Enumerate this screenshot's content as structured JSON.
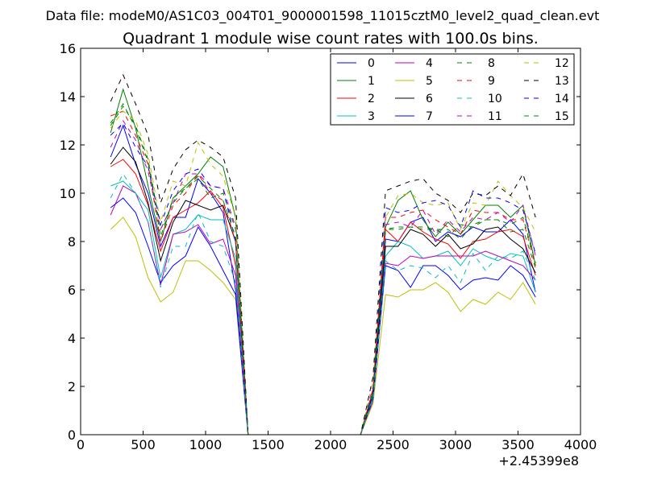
{
  "chart_data": {
    "type": "line",
    "suptitle": "Data file: modeM0/AS1C03_004T01_9000001598_11015cztM0_level2_quad_clean.evt",
    "title": "Quadrant 1 module wise count rates with 100.0s bins.",
    "xlabel": "",
    "ylabel": "",
    "x_offset_label": "+2.45399e8",
    "xlim": [
      0,
      4000
    ],
    "ylim": [
      0,
      16
    ],
    "xticks": [
      0,
      500,
      1000,
      1500,
      2000,
      2500,
      3000,
      3500,
      4000
    ],
    "yticks": [
      0,
      2,
      4,
      6,
      8,
      10,
      12,
      14,
      16
    ],
    "grid": false,
    "legend_position": "top-right",
    "legend_columns": 4,
    "x": [
      240,
      340,
      440,
      540,
      640,
      740,
      840,
      940,
      1040,
      1140,
      1240,
      1340,
      1440,
      1540,
      1640,
      1740,
      1840,
      1940,
      2040,
      2140,
      2240,
      2340,
      2440,
      2540,
      2640,
      2740,
      2840,
      2940,
      3040,
      3140,
      3240,
      3340,
      3440,
      3540,
      3640
    ],
    "series": [
      {
        "name": "0",
        "color": "#0000ff",
        "dashed": false,
        "values": [
          11.5,
          12.8,
          11.2,
          10.0,
          7.8,
          9.0,
          9.0,
          10.6,
          10.0,
          9.2,
          6.0,
          0,
          0,
          0,
          0,
          0,
          0,
          0,
          0,
          0,
          0,
          1.5,
          8.1,
          8.0,
          8.8,
          9.0,
          8.0,
          8.4,
          8.2,
          8.6,
          8.4,
          8.4,
          8.9,
          8.3,
          5.9
        ]
      },
      {
        "name": "1",
        "color": "#008000",
        "dashed": false,
        "values": [
          12.5,
          14.3,
          12.7,
          10.3,
          8.0,
          9.8,
          10.3,
          10.8,
          11.5,
          11.1,
          9.0,
          0,
          0,
          0,
          0,
          0,
          0,
          0,
          0,
          0,
          0,
          1.8,
          8.6,
          9.7,
          10.1,
          8.9,
          8.2,
          8.8,
          8.3,
          8.9,
          9.5,
          9.5,
          9.0,
          9.5,
          7.0
        ]
      },
      {
        "name": "2",
        "color": "#ff0000",
        "dashed": false,
        "values": [
          11.1,
          11.4,
          10.8,
          9.5,
          7.6,
          9.0,
          9.3,
          9.6,
          10.1,
          9.4,
          7.0,
          0,
          0,
          0,
          0,
          0,
          0,
          0,
          0,
          0,
          0,
          1.8,
          8.5,
          8.0,
          8.8,
          8.4,
          8.1,
          7.9,
          7.3,
          8.0,
          8.1,
          8.4,
          8.5,
          8.2,
          6.6
        ]
      },
      {
        "name": "3",
        "color": "#00bfbf",
        "dashed": false,
        "values": [
          10.3,
          10.5,
          10.0,
          9.3,
          6.5,
          8.3,
          8.5,
          9.1,
          8.9,
          8.9,
          7.3,
          0,
          0,
          0,
          0,
          0,
          0,
          0,
          0,
          0,
          0,
          1.6,
          7.4,
          8.0,
          7.8,
          7.3,
          7.4,
          7.6,
          7.0,
          7.7,
          7.4,
          7.2,
          7.5,
          7.4,
          5.9
        ]
      },
      {
        "name": "4",
        "color": "#bf00bf",
        "dashed": false,
        "values": [
          9.1,
          10.3,
          10.0,
          8.8,
          6.2,
          8.3,
          8.4,
          8.7,
          7.9,
          8.1,
          6.6,
          0,
          0,
          0,
          0,
          0,
          0,
          0,
          0,
          0,
          0,
          1.4,
          7.1,
          7.0,
          7.4,
          7.3,
          7.4,
          7.4,
          7.4,
          7.4,
          7.6,
          7.4,
          7.2,
          7.0,
          6.4
        ]
      },
      {
        "name": "5",
        "color": "#bfbf00",
        "dashed": false,
        "values": [
          8.5,
          9.0,
          8.2,
          6.5,
          5.5,
          5.9,
          7.2,
          7.2,
          6.8,
          6.3,
          5.6,
          0,
          0,
          0,
          0,
          0,
          0,
          0,
          0,
          0,
          0,
          1.3,
          5.8,
          5.7,
          6.0,
          6.0,
          6.3,
          5.9,
          5.1,
          5.6,
          5.4,
          5.9,
          5.6,
          6.3,
          5.4
        ]
      },
      {
        "name": "6",
        "color": "#000000",
        "dashed": false,
        "values": [
          11.2,
          11.9,
          11.3,
          9.6,
          7.2,
          8.8,
          9.7,
          9.5,
          9.3,
          9.5,
          8.0,
          0,
          0,
          0,
          0,
          0,
          0,
          0,
          0,
          0,
          0,
          1.7,
          7.8,
          7.8,
          8.5,
          8.3,
          7.8,
          8.3,
          7.7,
          7.9,
          8.5,
          8.6,
          8.1,
          7.7,
          6.7
        ]
      },
      {
        "name": "7",
        "color": "#0000ff",
        "dashed": false,
        "values": [
          9.4,
          9.8,
          9.2,
          7.8,
          6.3,
          7.0,
          7.4,
          8.6,
          7.8,
          6.8,
          5.8,
          0,
          0,
          0,
          0,
          0,
          0,
          0,
          0,
          0,
          0,
          1.5,
          7.0,
          6.8,
          6.1,
          7.0,
          7.0,
          6.6,
          6.0,
          6.4,
          6.5,
          6.4,
          7.0,
          6.6,
          5.7
        ]
      },
      {
        "name": "8",
        "color": "#008000",
        "dashed": true,
        "values": [
          12.8,
          13.6,
          12.8,
          11.4,
          8.5,
          9.6,
          10.2,
          10.6,
          9.8,
          10.0,
          8.5,
          0,
          0,
          0,
          0,
          0,
          0,
          0,
          0,
          0,
          0,
          1.7,
          8.5,
          8.5,
          8.6,
          8.6,
          8.5,
          8.2,
          8.7,
          8.6,
          8.9,
          8.9,
          8.4,
          8.5,
          6.9
        ]
      },
      {
        "name": "9",
        "color": "#ff0000",
        "dashed": true,
        "values": [
          13.2,
          13.4,
          12.4,
          11.2,
          8.0,
          9.5,
          10.0,
          10.8,
          10.0,
          9.7,
          8.0,
          0,
          0,
          0,
          0,
          0,
          0,
          0,
          0,
          0,
          0,
          1.9,
          9.0,
          9.0,
          9.2,
          9.3,
          8.9,
          8.6,
          8.3,
          9.3,
          9.2,
          9.2,
          8.9,
          8.9,
          7.0
        ]
      },
      {
        "name": "10",
        "color": "#00bfbf",
        "dashed": true,
        "values": [
          9.8,
          10.8,
          10.0,
          8.8,
          6.1,
          7.8,
          7.8,
          9.2,
          8.0,
          7.8,
          6.3,
          0,
          0,
          0,
          0,
          0,
          0,
          0,
          0,
          0,
          0,
          1.5,
          7.2,
          6.8,
          7.0,
          6.9,
          6.5,
          7.0,
          6.3,
          7.5,
          6.8,
          7.4,
          7.3,
          7.6,
          6.4
        ]
      },
      {
        "name": "11",
        "color": "#bf00bf",
        "dashed": true,
        "values": [
          11.9,
          13.0,
          12.2,
          10.9,
          8.5,
          9.6,
          10.8,
          10.8,
          10.3,
          10.2,
          8.6,
          0,
          0,
          0,
          0,
          0,
          0,
          0,
          0,
          0,
          0,
          2.0,
          8.7,
          8.8,
          8.6,
          9.3,
          8.3,
          8.9,
          8.4,
          9.0,
          8.9,
          9.2,
          8.8,
          9.5,
          7.4
        ]
      },
      {
        "name": "12",
        "color": "#bfbf00",
        "dashed": true,
        "values": [
          12.7,
          13.4,
          13.0,
          11.6,
          8.8,
          10.5,
          10.3,
          12.1,
          11.2,
          10.7,
          9.0,
          0,
          0,
          0,
          0,
          0,
          0,
          0,
          0,
          0,
          0,
          2.3,
          9.0,
          9.9,
          10.0,
          9.6,
          9.5,
          9.6,
          8.5,
          9.6,
          9.5,
          10.5,
          9.9,
          9.4,
          8.4
        ]
      },
      {
        "name": "13",
        "color": "#000000",
        "dashed": true,
        "values": [
          13.8,
          14.9,
          13.7,
          12.4,
          9.6,
          11.0,
          11.8,
          12.2,
          11.9,
          11.5,
          9.8,
          0,
          0,
          0,
          0,
          0,
          0,
          0,
          0,
          0,
          0,
          2.4,
          10.1,
          10.3,
          10.5,
          10.6,
          10.0,
          9.7,
          9.2,
          10.0,
          9.9,
          10.3,
          9.9,
          10.8,
          9.0
        ]
      },
      {
        "name": "14",
        "color": "#0000ff",
        "dashed": true,
        "values": [
          12.4,
          12.9,
          11.9,
          11.1,
          8.7,
          10.1,
          10.8,
          11.0,
          10.3,
          10.2,
          8.0,
          0,
          0,
          0,
          0,
          0,
          0,
          0,
          0,
          0,
          0,
          1.8,
          9.4,
          9.2,
          9.3,
          9.6,
          9.7,
          9.5,
          8.6,
          10.1,
          9.8,
          9.8,
          9.6,
          9.3,
          7.5
        ]
      },
      {
        "name": "15",
        "color": "#008000",
        "dashed": true,
        "values": [
          12.9,
          13.7,
          12.7,
          11.3,
          8.2,
          9.8,
          10.2,
          10.7,
          10.2,
          9.7,
          8.2,
          0,
          0,
          0,
          0,
          0,
          0,
          0,
          0,
          0,
          0,
          1.8,
          8.5,
          8.6,
          8.6,
          8.5,
          8.5,
          8.5,
          8.1,
          8.7,
          8.9,
          8.9,
          8.7,
          9.0,
          7.1
        ]
      }
    ]
  }
}
